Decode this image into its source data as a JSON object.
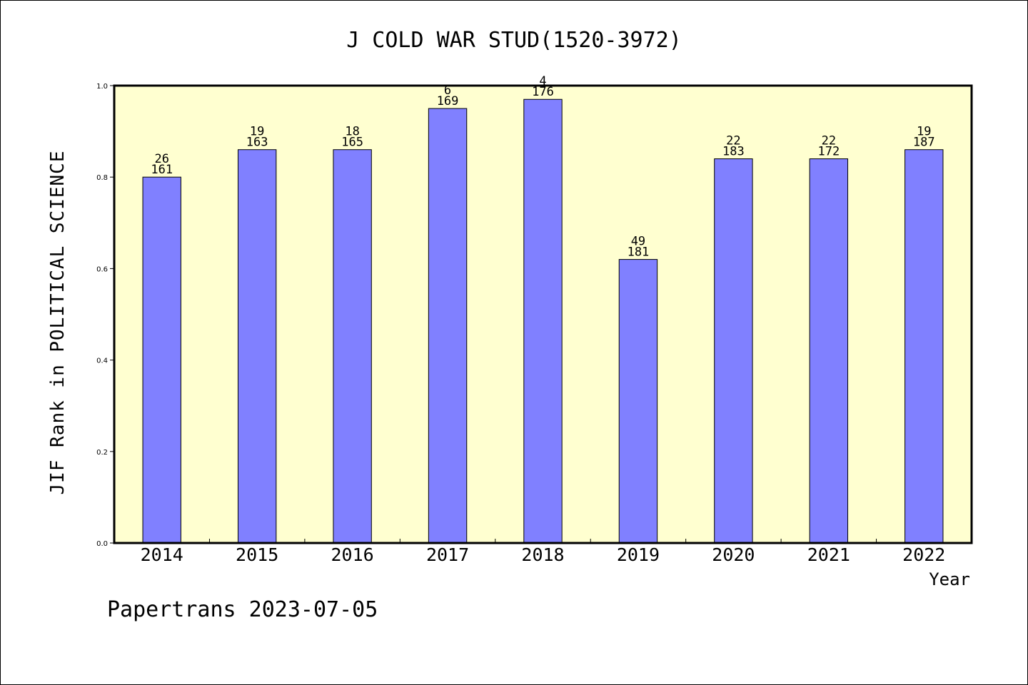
{
  "chart_data": {
    "type": "bar",
    "title": "J COLD WAR STUD(1520-3972)",
    "xlabel": "Year",
    "ylabel": "JIF Rank in POLITICAL SCIENCE",
    "categories": [
      "2014",
      "2015",
      "2016",
      "2017",
      "2018",
      "2019",
      "2020",
      "2021",
      "2022"
    ],
    "values": [
      0.8,
      0.86,
      0.86,
      0.95,
      0.97,
      0.62,
      0.84,
      0.84,
      0.86
    ],
    "rank": [
      "26",
      "19",
      "18",
      "6",
      "4",
      "49",
      "22",
      "22",
      "19"
    ],
    "total": [
      "161",
      "163",
      "165",
      "169",
      "176",
      "181",
      "183",
      "172",
      "187"
    ],
    "ylim": [
      0,
      1.0
    ],
    "yticks": [
      "0.0",
      "0.2",
      "0.4",
      "0.6",
      "0.8",
      "1.0"
    ],
    "grid": false,
    "colors": {
      "plot_background": "#ffffd0",
      "bar": "#8080ff",
      "bar_edge": "#000000"
    }
  },
  "footer": "Papertrans 2023-07-05"
}
